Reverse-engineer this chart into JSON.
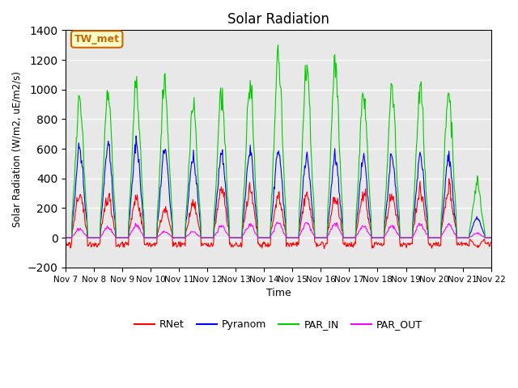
{
  "title": "Solar Radiation",
  "ylabel": "Solar Radiation (W/m2, uE/m2/s)",
  "xlabel": "Time",
  "ylim": [
    -200,
    1400
  ],
  "annotation_text": "TW_met",
  "annotation_bg": "#ffffcc",
  "annotation_border": "#cc6600",
  "bg_color": "#e8e8e8",
  "grid_color": "#ffffff",
  "series": [
    "RNet",
    "Pyranom",
    "PAR_IN",
    "PAR_OUT"
  ],
  "colors": [
    "#ff0000",
    "#0000ff",
    "#00cc00",
    "#ff00ff"
  ],
  "xtick_labels": [
    "Nov 7",
    "Nov 8",
    "Nov 9",
    "Nov 10",
    "Nov 11",
    "Nov 12",
    "Nov 13",
    "Nov 14",
    "Nov 15",
    "Nov 16",
    "Nov 17",
    "Nov 18",
    "Nov 19",
    "Nov 20",
    "Nov 21",
    "Nov 22"
  ],
  "n_days": 15,
  "pts_per_day": 48,
  "par_in_peaks": [
    950,
    960,
    1030,
    1030,
    880,
    990,
    1020,
    1220,
    1160,
    1160,
    990,
    990,
    990,
    1000,
    360
  ],
  "pyranom_peaks": [
    600,
    610,
    640,
    580,
    550,
    550,
    580,
    580,
    540,
    540,
    530,
    540,
    550,
    540,
    140
  ],
  "rnet_peaks": [
    290,
    280,
    270,
    190,
    230,
    330,
    320,
    290,
    300,
    270,
    300,
    290,
    310,
    330,
    -60
  ],
  "par_out_peaks": [
    60,
    70,
    80,
    40,
    40,
    80,
    90,
    100,
    100,
    100,
    80,
    80,
    90,
    90,
    30
  ],
  "yticks": [
    -200,
    0,
    200,
    400,
    600,
    800,
    1000,
    1200,
    1400
  ]
}
